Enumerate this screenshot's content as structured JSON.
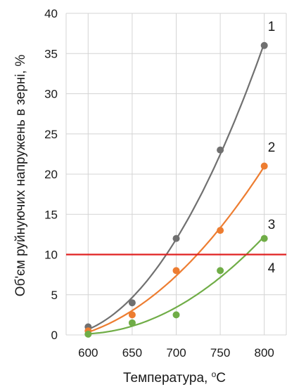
{
  "chart_data": {
    "type": "scatter",
    "xlabel_main": "Температура, ",
    "xlabel_sup": "o",
    "xlabel_unit": "C",
    "ylabel": "Об'єм руйнуючих напружень в зерні, %",
    "xlim": [
      575,
      825
    ],
    "ylim": [
      0,
      40
    ],
    "x_ticks": [
      600,
      650,
      700,
      750,
      800
    ],
    "y_ticks": [
      0,
      5,
      10,
      15,
      20,
      25,
      30,
      35,
      40
    ],
    "grid": true,
    "series": [
      {
        "label": "1",
        "color": "#707070",
        "x": [
          600,
          650,
          700,
          750,
          800
        ],
        "y": [
          1,
          4,
          12,
          23,
          36
        ],
        "trend": "poly2"
      },
      {
        "label": "2",
        "color": "#ED7D31",
        "x": [
          600,
          650,
          700,
          750,
          800
        ],
        "y": [
          0.5,
          2.5,
          8,
          13,
          21
        ],
        "trend": "poly2"
      },
      {
        "label": "3",
        "color": "#70AD47",
        "x": [
          600,
          650,
          700,
          750,
          800
        ],
        "y": [
          0.1,
          1.5,
          2.5,
          8,
          12
        ],
        "trend": "poly2"
      }
    ],
    "threshold": {
      "label": "4",
      "value": 10,
      "color": "#E02020"
    }
  }
}
